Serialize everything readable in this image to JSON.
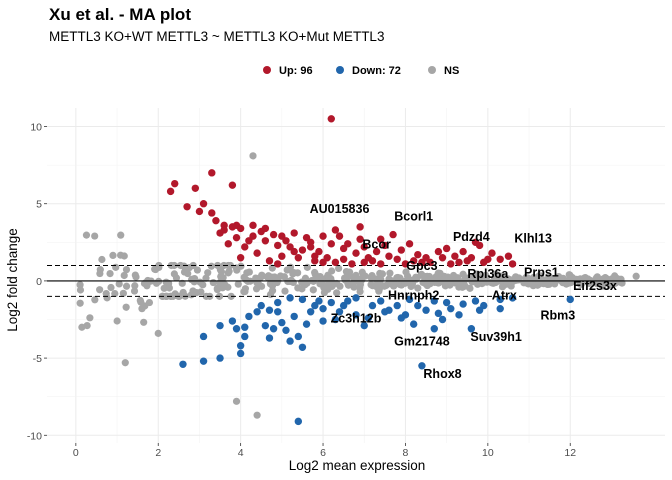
{
  "chart_data": {
    "type": "scatter",
    "title": "Xu et al. - MA plot",
    "subtitle": "METTL3 KO+WT METTL3 ~ METTL3 KO+Mut METTL3",
    "xlabel": "Log2 mean expression",
    "ylabel": "Log2 fold change",
    "xlim": [
      -0.7,
      14.3
    ],
    "ylim": [
      -10.5,
      11.2
    ],
    "xticks": [
      0,
      2,
      4,
      6,
      8,
      10,
      12
    ],
    "yticks": [
      -10,
      -5,
      0,
      5,
      10
    ],
    "grid": true,
    "legend_position": "top",
    "threshold_lines": [
      1,
      -1
    ],
    "zero_line": 0,
    "colors": {
      "Up": "#b2182b",
      "Down": "#2166ac",
      "NS": "#a6a6a6"
    },
    "legend": [
      {
        "key": "Up",
        "label": "Up: 96"
      },
      {
        "key": "Down",
        "label": "Down: 72"
      },
      {
        "key": "NS",
        "label": "NS"
      }
    ],
    "series": [
      {
        "name": "Up: 96",
        "key": "Up",
        "points": [
          [
            6.2,
            10.5
          ],
          [
            2.4,
            6.3
          ],
          [
            2.3,
            5.8
          ],
          [
            3.3,
            7.0
          ],
          [
            3.8,
            6.2
          ],
          [
            2.9,
            6.0
          ],
          [
            3.1,
            5.0
          ],
          [
            3.0,
            4.5
          ],
          [
            3.3,
            4.4
          ],
          [
            2.7,
            4.8
          ],
          [
            3.8,
            3.5
          ],
          [
            3.6,
            3.6
          ],
          [
            4.0,
            3.4
          ],
          [
            4.3,
            3.6
          ],
          [
            4.5,
            3.2
          ],
          [
            4.8,
            3.0
          ],
          [
            4.6,
            3.4
          ],
          [
            5.3,
            3.1
          ],
          [
            5.7,
            2.5
          ],
          [
            6.0,
            2.9
          ],
          [
            6.4,
            2.9
          ],
          [
            6.9,
            3.5
          ],
          [
            7.4,
            2.7
          ],
          [
            7.7,
            3.0
          ],
          [
            7.5,
            2.3
          ],
          [
            5.1,
            2.6
          ],
          [
            4.9,
            2.3
          ],
          [
            5.5,
            2.0
          ],
          [
            5.9,
            1.9
          ],
          [
            6.1,
            1.5
          ],
          [
            6.5,
            2.1
          ],
          [
            6.8,
            1.8
          ],
          [
            7.1,
            1.5
          ],
          [
            7.3,
            1.9
          ],
          [
            7.8,
            1.4
          ],
          [
            8.3,
            1.7
          ],
          [
            8.6,
            1.2
          ],
          [
            8.9,
            1.5
          ],
          [
            9.1,
            1.1
          ],
          [
            9.5,
            1.3
          ],
          [
            9.9,
            1.2
          ],
          [
            8.4,
            1.2
          ],
          [
            7.0,
            1.2
          ],
          [
            6.3,
            1.2
          ],
          [
            5.8,
            1.3
          ],
          [
            5.0,
            1.6
          ],
          [
            4.4,
            1.8
          ],
          [
            4.1,
            2.2
          ],
          [
            3.9,
            2.8
          ],
          [
            3.7,
            2.4
          ],
          [
            9.8,
            2.3
          ],
          [
            9.7,
            2.5
          ],
          [
            9.6,
            1.5
          ],
          [
            10.3,
            1.4
          ],
          [
            10.6,
            1.1
          ],
          [
            10.1,
            1.8
          ],
          [
            7.9,
            2.0
          ],
          [
            8.1,
            2.4
          ],
          [
            5.4,
            1.5
          ],
          [
            4.7,
            1.3
          ],
          [
            3.5,
            3.1
          ],
          [
            3.4,
            3.9
          ],
          [
            4.2,
            2.6
          ],
          [
            5.2,
            2.2
          ],
          [
            6.6,
            2.4
          ],
          [
            6.7,
            1.1
          ],
          [
            7.6,
            1.6
          ],
          [
            8.8,
            1.9
          ],
          [
            9.2,
            1.6
          ],
          [
            4.9,
            1.1
          ],
          [
            5.6,
            2.8
          ],
          [
            6.2,
            2.4
          ],
          [
            7.2,
            1.3
          ],
          [
            8.0,
            1.1
          ],
          [
            9.0,
            2.1
          ],
          [
            4.3,
            2.9
          ],
          [
            3.9,
            3.6
          ],
          [
            5.8,
            1.6
          ],
          [
            6.9,
            2.7
          ],
          [
            8.5,
            1.5
          ],
          [
            10.0,
            1.4
          ],
          [
            10.5,
            1.6
          ],
          [
            9.4,
            1.9
          ],
          [
            5.3,
            1.9
          ],
          [
            6.0,
            1.2
          ],
          [
            7.4,
            1.1
          ],
          [
            4.6,
            2.6
          ],
          [
            3.6,
            3.3
          ],
          [
            5.0,
            2.9
          ],
          [
            6.5,
            1.4
          ],
          [
            8.2,
            1.3
          ],
          [
            9.3,
            1.2
          ],
          [
            7.0,
            2.2
          ],
          [
            5.7,
            2.2
          ],
          [
            4.0,
            1.5
          ],
          [
            6.3,
            3.3
          ]
        ]
      },
      {
        "name": "Down: 72",
        "key": "Down",
        "points": [
          [
            2.6,
            -5.4
          ],
          [
            3.1,
            -3.6
          ],
          [
            3.1,
            -5.2
          ],
          [
            3.5,
            -5.0
          ],
          [
            4.0,
            -4.2
          ],
          [
            4.0,
            -4.7
          ],
          [
            4.1,
            -3.6
          ],
          [
            4.1,
            -3.0
          ],
          [
            4.7,
            -3.7
          ],
          [
            5.5,
            -4.3
          ],
          [
            5.4,
            -3.6
          ],
          [
            5.2,
            -3.9
          ],
          [
            5.1,
            -3.2
          ],
          [
            4.8,
            -3.1
          ],
          [
            4.6,
            -2.9
          ],
          [
            5.0,
            -2.7
          ],
          [
            5.3,
            -2.3
          ],
          [
            5.7,
            -2.0
          ],
          [
            6.0,
            -1.8
          ],
          [
            6.3,
            -2.5
          ],
          [
            6.5,
            -1.6
          ],
          [
            7.0,
            -2.9
          ],
          [
            7.2,
            -1.6
          ],
          [
            7.6,
            -1.9
          ],
          [
            8.0,
            -2.2
          ],
          [
            8.3,
            -1.6
          ],
          [
            8.5,
            -1.9
          ],
          [
            8.7,
            -1.3
          ],
          [
            9.0,
            -1.4
          ],
          [
            9.4,
            -1.5
          ],
          [
            9.7,
            -1.3
          ],
          [
            9.9,
            -1.6
          ],
          [
            10.3,
            -1.2
          ],
          [
            10.6,
            -1.1
          ],
          [
            8.8,
            -2.1
          ],
          [
            8.1,
            -1.2
          ],
          [
            7.4,
            -1.3
          ],
          [
            6.8,
            -1.1
          ],
          [
            6.2,
            -1.4
          ],
          [
            5.9,
            -1.3
          ],
          [
            5.5,
            -1.2
          ],
          [
            5.2,
            -1.1
          ],
          [
            4.9,
            -1.4
          ],
          [
            4.5,
            -1.6
          ],
          [
            4.4,
            -2.0
          ],
          [
            4.2,
            -2.3
          ],
          [
            3.8,
            -2.6
          ],
          [
            3.5,
            -2.9
          ],
          [
            9.6,
            -3.1
          ],
          [
            8.7,
            -3.1
          ],
          [
            8.4,
            -5.5
          ],
          [
            7.9,
            -2.4
          ],
          [
            12.0,
            -1.2
          ],
          [
            10.3,
            -1.8
          ],
          [
            5.4,
            -9.1
          ],
          [
            4.9,
            -2.0
          ],
          [
            6.0,
            -2.6
          ],
          [
            6.8,
            -2.2
          ],
          [
            7.5,
            -2.0
          ],
          [
            8.2,
            -2.8
          ],
          [
            9.1,
            -1.8
          ],
          [
            9.8,
            -1.9
          ],
          [
            7.8,
            -1.6
          ],
          [
            5.8,
            -1.6
          ],
          [
            4.7,
            -1.9
          ],
          [
            3.9,
            -3.1
          ],
          [
            6.4,
            -2.0
          ],
          [
            7.1,
            -2.4
          ],
          [
            8.9,
            -2.5
          ],
          [
            9.3,
            -2.2
          ],
          [
            6.6,
            -1.3
          ],
          [
            5.6,
            -2.8
          ]
        ]
      }
    ],
    "labels": [
      {
        "text": "AU015836",
        "x": 6.4,
        "y": 4.4
      },
      {
        "text": "Bcorl1",
        "x": 8.2,
        "y": 3.9
      },
      {
        "text": "Pdzd4",
        "x": 9.6,
        "y": 2.6
      },
      {
        "text": "Klhl13",
        "x": 11.1,
        "y": 2.5
      },
      {
        "text": "Bcor",
        "x": 7.3,
        "y": 2.1
      },
      {
        "text": "Gpc3",
        "x": 8.4,
        "y": 0.7
      },
      {
        "text": "Rpl36a",
        "x": 10.0,
        "y": 0.2
      },
      {
        "text": "Prps1",
        "x": 11.3,
        "y": 0.3
      },
      {
        "text": "Eif2s3x",
        "x": 12.6,
        "y": -0.6
      },
      {
        "text": "Hnrnph2",
        "x": 8.2,
        "y": -1.2
      },
      {
        "text": "Atrx",
        "x": 10.4,
        "y": -1.2
      },
      {
        "text": "Zc3h12b",
        "x": 6.8,
        "y": -2.7
      },
      {
        "text": "Rbm3",
        "x": 11.7,
        "y": -2.5
      },
      {
        "text": "Gm21748",
        "x": 8.4,
        "y": -4.2
      },
      {
        "text": "Suv39h1",
        "x": 10.2,
        "y": -3.9
      },
      {
        "text": "Rhox8",
        "x": 8.9,
        "y": -6.3
      }
    ]
  }
}
